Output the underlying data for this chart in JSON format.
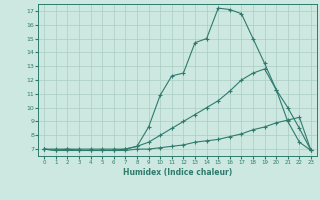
{
  "xlabel": "Humidex (Indice chaleur)",
  "ylabel": "",
  "xlim": [
    -0.5,
    23.5
  ],
  "ylim": [
    6.5,
    17.5
  ],
  "yticks": [
    7,
    8,
    9,
    10,
    11,
    12,
    13,
    14,
    15,
    16,
    17
  ],
  "xticks": [
    0,
    1,
    2,
    3,
    4,
    5,
    6,
    7,
    8,
    9,
    10,
    11,
    12,
    13,
    14,
    15,
    16,
    17,
    18,
    19,
    20,
    21,
    22,
    23
  ],
  "bg_color": "#cde8e0",
  "line_color": "#2e7b6e",
  "grid_color": "#aaccc4",
  "line1_x": [
    0,
    1,
    2,
    3,
    4,
    5,
    6,
    7,
    8,
    9,
    10,
    11,
    12,
    13,
    14,
    15,
    16,
    17,
    18,
    19,
    20,
    21,
    22,
    23
  ],
  "line1_y": [
    7.0,
    6.9,
    7.0,
    6.9,
    6.9,
    6.9,
    6.9,
    7.0,
    7.2,
    8.6,
    10.9,
    12.3,
    12.5,
    14.7,
    15.0,
    17.2,
    17.1,
    16.8,
    15.0,
    13.2,
    11.3,
    9.0,
    7.5,
    6.9
  ],
  "line2_x": [
    0,
    1,
    2,
    3,
    4,
    5,
    6,
    7,
    8,
    9,
    10,
    11,
    12,
    13,
    14,
    15,
    16,
    17,
    18,
    19,
    20,
    21,
    22,
    23
  ],
  "line2_y": [
    7.0,
    7.0,
    7.0,
    7.0,
    7.0,
    7.0,
    7.0,
    7.0,
    7.2,
    7.5,
    8.0,
    8.5,
    9.0,
    9.5,
    10.0,
    10.5,
    11.2,
    12.0,
    12.5,
    12.8,
    11.3,
    10.0,
    8.5,
    6.9
  ],
  "line3_x": [
    0,
    1,
    2,
    3,
    4,
    5,
    6,
    7,
    8,
    9,
    10,
    11,
    12,
    13,
    14,
    15,
    16,
    17,
    18,
    19,
    20,
    21,
    22,
    23
  ],
  "line3_y": [
    7.0,
    6.9,
    6.9,
    6.9,
    6.9,
    6.9,
    6.9,
    6.9,
    7.0,
    7.0,
    7.1,
    7.2,
    7.3,
    7.5,
    7.6,
    7.7,
    7.9,
    8.1,
    8.4,
    8.6,
    8.9,
    9.1,
    9.3,
    6.9
  ]
}
